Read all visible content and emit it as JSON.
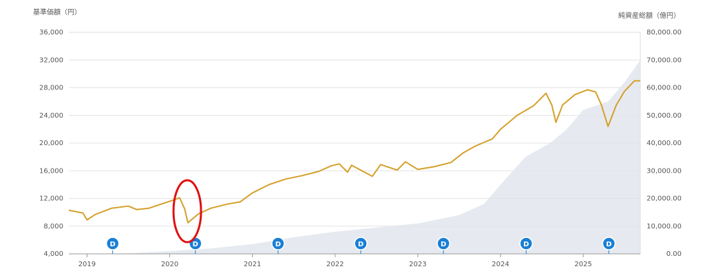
{
  "chart_data": {
    "type": "line-area",
    "y_axis_label": "基準価額（円）",
    "y2_axis_label": "純資産総額（億円）",
    "xlim": [
      2018.78,
      2025.69
    ],
    "xticks": [
      2019,
      2020,
      2021,
      2022,
      2023,
      2024,
      2025
    ],
    "ylim": [
      4000,
      36000
    ],
    "yticks": [
      {
        "value": 4000,
        "label": "4,000"
      },
      {
        "value": 8000,
        "label": "8,000"
      },
      {
        "value": 12000,
        "label": "12,000"
      },
      {
        "value": 16000,
        "label": "16,000"
      },
      {
        "value": 20000,
        "label": "20,000"
      },
      {
        "value": 24000,
        "label": "24,000"
      },
      {
        "value": 28000,
        "label": "28,000"
      },
      {
        "value": 32000,
        "label": "32,000"
      },
      {
        "value": 36000,
        "label": "36,000"
      }
    ],
    "y2lim": [
      0,
      80000
    ],
    "y2ticks": [
      {
        "value": 0,
        "label": "0.00"
      },
      {
        "value": 10000,
        "label": "10,000.00"
      },
      {
        "value": 20000,
        "label": "20,000.00"
      },
      {
        "value": 30000,
        "label": "30,000.00"
      },
      {
        "value": 40000,
        "label": "40,000.00"
      },
      {
        "value": 50000,
        "label": "50,000.00"
      },
      {
        "value": 60000,
        "label": "60,000.00"
      },
      {
        "value": 70000,
        "label": "70,000.00"
      },
      {
        "value": 80000,
        "label": "80,000.00"
      }
    ],
    "grid": true,
    "series": [
      {
        "kind": "area",
        "axis": "y2",
        "color": "#e6eaf0",
        "x": [
          2018.78,
          2019.5,
          2020,
          2020.5,
          2021,
          2021.5,
          2022,
          2022.5,
          2023,
          2023.5,
          2023.8,
          2024,
          2024.3,
          2024.6,
          2024.8,
          2025,
          2025.3,
          2025.5,
          2025.69
        ],
        "values": [
          0,
          200,
          1000,
          2000,
          3500,
          6000,
          8000,
          9500,
          11000,
          14000,
          18000,
          25000,
          35000,
          40000,
          45000,
          52000,
          55000,
          62000,
          70000
        ]
      },
      {
        "kind": "line",
        "axis": "y",
        "color": "#d4a02a",
        "x": [
          2018.78,
          2018.95,
          2019.0,
          2019.1,
          2019.3,
          2019.5,
          2019.6,
          2019.75,
          2019.9,
          2020.0,
          2020.12,
          2020.18,
          2020.22,
          2020.27,
          2020.35,
          2020.5,
          2020.7,
          2020.85,
          2021.0,
          2021.2,
          2021.4,
          2021.6,
          2021.8,
          2021.95,
          2022.05,
          2022.15,
          2022.2,
          2022.45,
          2022.55,
          2022.75,
          2022.85,
          2023.0,
          2023.2,
          2023.4,
          2023.55,
          2023.7,
          2023.8,
          2023.9,
          2024.0,
          2024.2,
          2024.4,
          2024.55,
          2024.62,
          2024.67,
          2024.75,
          2024.9,
          2025.05,
          2025.15,
          2025.22,
          2025.3,
          2025.4,
          2025.5,
          2025.62,
          2025.69
        ],
        "values": [
          10300,
          9900,
          8900,
          9700,
          10600,
          10900,
          10400,
          10600,
          11200,
          11600,
          12100,
          10500,
          8500,
          9000,
          9800,
          10600,
          11200,
          11500,
          12800,
          14000,
          14800,
          15300,
          15900,
          16700,
          17000,
          15800,
          16800,
          15200,
          16900,
          16100,
          17300,
          16200,
          16600,
          17200,
          18600,
          19600,
          20100,
          20600,
          22000,
          24000,
          25400,
          27200,
          25500,
          23000,
          25500,
          27000,
          27700,
          27400,
          25500,
          22400,
          25500,
          27500,
          29000,
          29000
        ]
      }
    ],
    "annotations": [
      {
        "x": 2019.31,
        "label": "D"
      },
      {
        "x": 2020.31,
        "label": "D"
      },
      {
        "x": 2021.31,
        "label": "D"
      },
      {
        "x": 2022.31,
        "label": "D"
      },
      {
        "x": 2023.31,
        "label": "D"
      },
      {
        "x": 2024.31,
        "label": "D"
      },
      {
        "x": 2025.31,
        "label": "D"
      }
    ]
  }
}
